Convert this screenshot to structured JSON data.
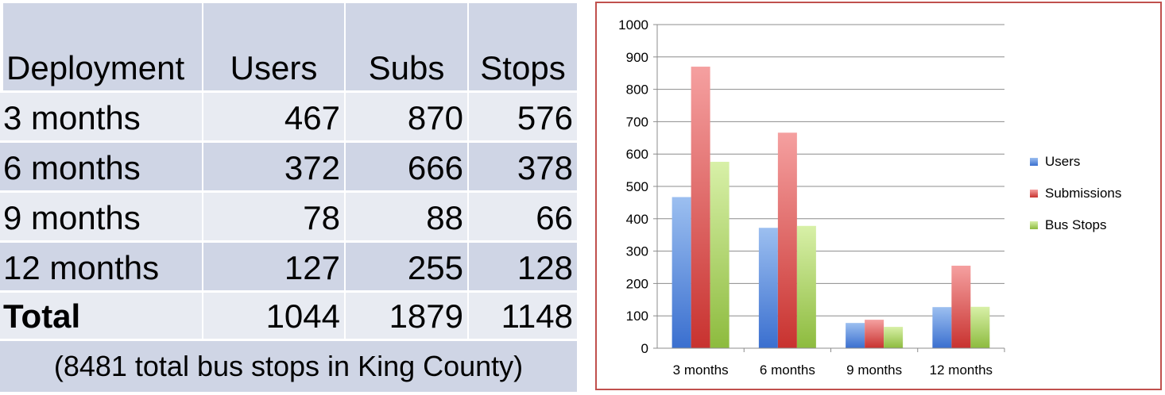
{
  "table": {
    "headers": [
      "Deployment",
      "Users",
      "Subs",
      "Stops"
    ],
    "rows": [
      [
        "3 months",
        "467",
        "870",
        "576"
      ],
      [
        "6 months",
        "372",
        "666",
        "378"
      ],
      [
        "9 months",
        "78",
        "88",
        "66"
      ],
      [
        "12 months",
        "127",
        "255",
        "128"
      ],
      [
        "Total",
        "1044",
        "1879",
        "1148"
      ]
    ],
    "note": "(8481 total bus stops in King County)"
  },
  "chart_data": {
    "type": "bar",
    "categories": [
      "3 months",
      "6 months",
      "9 months",
      "12 months"
    ],
    "series": [
      {
        "name": "Users",
        "values": [
          467,
          372,
          78,
          127
        ],
        "color": "#4f81bd"
      },
      {
        "name": "Submissions",
        "values": [
          870,
          666,
          88,
          255
        ],
        "color": "#c0504d"
      },
      {
        "name": "Bus Stops",
        "values": [
          576,
          378,
          66,
          128
        ],
        "color": "#9bbb59"
      }
    ],
    "ylim": [
      0,
      1000
    ],
    "yticks": [
      0,
      100,
      200,
      300,
      400,
      500,
      600,
      700,
      800,
      900,
      1000
    ],
    "grid": true,
    "legend": "right",
    "title": "",
    "xlabel": "",
    "ylabel": ""
  }
}
